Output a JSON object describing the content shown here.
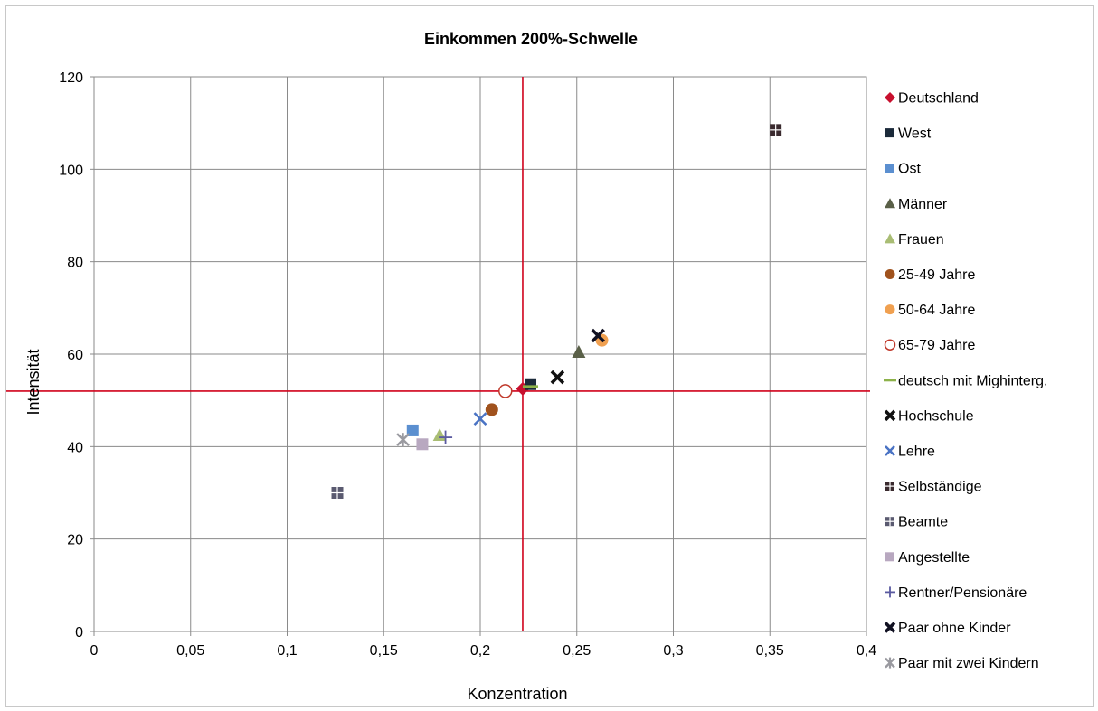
{
  "chart_data": {
    "type": "scatter",
    "title": "Einkommen 200%-Schwelle",
    "xlabel": "Konzentration",
    "ylabel": "Intensität",
    "xlim": [
      0,
      0.4
    ],
    "ylim": [
      0,
      120
    ],
    "x_ticks": [
      0,
      0.05,
      0.1,
      0.15,
      0.2,
      0.25,
      0.3,
      0.35,
      0.4
    ],
    "x_tick_labels": [
      "0",
      "0,05",
      "0,1",
      "0,15",
      "0,2",
      "0,25",
      "0,3",
      "0,35",
      "0,4"
    ],
    "y_ticks": [
      0,
      20,
      40,
      60,
      80,
      100,
      120
    ],
    "y_tick_labels": [
      "0",
      "20",
      "40",
      "60",
      "80",
      "100",
      "120"
    ],
    "grid": true,
    "legend_position": "right",
    "reference_lines": {
      "x": 0.222,
      "y": 52,
      "color": "#d0021b"
    },
    "series": [
      {
        "name": "Deutschland",
        "x": 0.222,
        "y": 52.5,
        "marker": "diamond",
        "color": "#c8102e"
      },
      {
        "name": "West",
        "x": 0.226,
        "y": 53.5,
        "marker": "square",
        "color": "#1b2a3a"
      },
      {
        "name": "Ost",
        "x": 0.165,
        "y": 43.5,
        "marker": "square",
        "color": "#5b8fd0"
      },
      {
        "name": "Männer",
        "x": 0.251,
        "y": 60.5,
        "marker": "triangle",
        "color": "#5a6048"
      },
      {
        "name": "Frauen",
        "x": 0.179,
        "y": 42.5,
        "marker": "triangle",
        "color": "#a9bd74"
      },
      {
        "name": "25-49 Jahre",
        "x": 0.206,
        "y": 48,
        "marker": "circle",
        "color": "#a0521d"
      },
      {
        "name": "50-64 Jahre",
        "x": 0.263,
        "y": 63,
        "marker": "circle",
        "color": "#f0a050"
      },
      {
        "name": "65-79 Jahre",
        "x": 0.213,
        "y": 52,
        "marker": "circle-open",
        "color": "#c0392b"
      },
      {
        "name": "deutsch mit Mighinterg.",
        "x": 0.226,
        "y": 53,
        "marker": "dash",
        "color": "#8db24a"
      },
      {
        "name": "Hochschule",
        "x": 0.24,
        "y": 55,
        "marker": "x-bold",
        "color": "#111111"
      },
      {
        "name": "Lehre",
        "x": 0.2,
        "y": 46,
        "marker": "x",
        "color": "#4a73c4"
      },
      {
        "name": "Selbständige",
        "x": 0.353,
        "y": 108.5,
        "marker": "square-grid",
        "color": "#3a2a2e"
      },
      {
        "name": "Beamte",
        "x": 0.126,
        "y": 30,
        "marker": "square-grid",
        "color": "#5a5a70"
      },
      {
        "name": "Angestellte",
        "x": 0.17,
        "y": 40.5,
        "marker": "square",
        "color": "#b8a8c0"
      },
      {
        "name": "Rentner/Pensionäre",
        "x": 0.182,
        "y": 42,
        "marker": "plus",
        "color": "#5a5aa0"
      },
      {
        "name": "Paar ohne Kinder",
        "x": 0.261,
        "y": 64,
        "marker": "x-bold",
        "color": "#111122"
      },
      {
        "name": "Paar mit zwei Kindern",
        "x": 0.16,
        "y": 41.5,
        "marker": "asterisk",
        "color": "#9a9aa0"
      }
    ]
  }
}
